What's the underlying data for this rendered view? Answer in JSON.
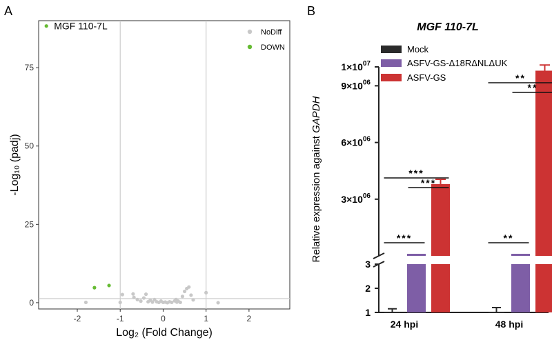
{
  "panel_labels": {
    "a": "A",
    "b": "B"
  },
  "colors": {
    "nodiff": "#c8c8c8",
    "down": "#66bb33",
    "mock": "#2b2b2b",
    "ko": "#7e5ea6",
    "wt": "#cc3333",
    "grid": "#cccccc",
    "axis": "#222222"
  },
  "chart_data": [
    {
      "id": "A",
      "type": "scatter",
      "title": "",
      "xlabel": "Log₂ (Fold Change)",
      "ylabel": "-Log₁₀ (padj)",
      "xlim": [
        -2.9,
        2.95
      ],
      "ylim": [
        -2,
        90
      ],
      "xticks": [
        -2,
        -1,
        0,
        1,
        2
      ],
      "yticks": [
        0,
        25,
        50,
        75
      ],
      "xtick_labels": [
        "-2",
        "-1",
        "0",
        "1",
        "2"
      ],
      "ytick_labels": [
        "0",
        "25",
        "50",
        "75"
      ],
      "vlines": [
        -1,
        1
      ],
      "hline": 1.3,
      "legend": {
        "position": "top-right",
        "entries": [
          "NoDiff",
          "DOWN"
        ]
      },
      "annotation": {
        "text": "MGF 110-7L",
        "x": -2.72,
        "y": 88.3
      },
      "series": [
        {
          "name": "DOWN",
          "points": [
            [
              -2.72,
              88.3
            ],
            [
              -1.6,
              4.8
            ],
            [
              -1.26,
              5.5
            ]
          ]
        },
        {
          "name": "NoDiff",
          "points": [
            [
              -1.8,
              0.1
            ],
            [
              -1.0,
              0.1
            ],
            [
              -0.95,
              2.6
            ],
            [
              -0.7,
              2.8
            ],
            [
              -0.68,
              1.7
            ],
            [
              -0.6,
              1.0
            ],
            [
              -0.52,
              0.5
            ],
            [
              -0.45,
              1.5
            ],
            [
              -0.4,
              2.7
            ],
            [
              -0.35,
              0.3
            ],
            [
              -0.3,
              0.8
            ],
            [
              -0.25,
              0.2
            ],
            [
              -0.2,
              1.0
            ],
            [
              -0.15,
              0.3
            ],
            [
              -0.1,
              0.1
            ],
            [
              -0.05,
              0.5
            ],
            [
              0.0,
              0.1
            ],
            [
              0.05,
              0.2
            ],
            [
              0.1,
              0.0
            ],
            [
              0.15,
              0.3
            ],
            [
              0.2,
              0.1
            ],
            [
              0.27,
              0.6
            ],
            [
              0.3,
              1.0
            ],
            [
              0.32,
              0.2
            ],
            [
              0.35,
              0.5
            ],
            [
              0.4,
              0.1
            ],
            [
              0.45,
              2.0
            ],
            [
              0.5,
              3.6
            ],
            [
              0.55,
              4.5
            ],
            [
              0.6,
              5.0
            ],
            [
              0.65,
              2.4
            ],
            [
              0.7,
              0.9
            ],
            [
              1.0,
              3.2
            ],
            [
              1.28,
              0.0
            ]
          ]
        }
      ]
    },
    {
      "id": "B",
      "type": "bar",
      "title": "MGF 110-7L",
      "xlabel": "",
      "ylabel_prefix": "Relative expression against ",
      "ylabel_gene": "GAPDH",
      "categories": [
        "24 hpi",
        "48 hpi"
      ],
      "series": [
        {
          "name": "Mock",
          "values": [
            1.0,
            1.0
          ],
          "errors": [
            0.15,
            0.2
          ]
        },
        {
          "name": "ASFV-GS-Δ18RΔNLΔUK",
          "values": [
            260000,
            270000
          ],
          "errors": [
            20000,
            20000
          ]
        },
        {
          "name": "ASFV-GS",
          "values": [
            3800000,
            9800000
          ],
          "errors": [
            250000,
            300000
          ]
        }
      ],
      "lower_axis": {
        "ylim": [
          1,
          3
        ],
        "ticks": [
          1,
          2,
          3
        ],
        "tick_labels": [
          "1",
          "2",
          "3"
        ]
      },
      "upper_axis": {
        "ylim": [
          0,
          10000000
        ],
        "ticks": [
          3000000,
          6000000,
          9000000,
          10000000
        ],
        "tick_labels": [
          {
            "mantissa": "3×10",
            "exponent": "06"
          },
          {
            "mantissa": "6×10",
            "exponent": "06"
          },
          {
            "mantissa": "9×10",
            "exponent": "06"
          },
          {
            "mantissa": "1×10",
            "exponent": "07"
          }
        ]
      },
      "legend": {
        "position": "top-left"
      },
      "significance": [
        {
          "group": "24 hpi",
          "from": "Mock",
          "to": "ASFV-GS-Δ18RΔNLΔUK",
          "label": "***"
        },
        {
          "group": "24 hpi",
          "from": "Mock",
          "to": "ASFV-GS",
          "label": "***"
        },
        {
          "group": "24 hpi",
          "from": "ASFV-GS-Δ18RΔNLΔUK",
          "to": "ASFV-GS",
          "label": "***"
        },
        {
          "group": "48 hpi",
          "from": "Mock",
          "to": "ASFV-GS-Δ18RΔNLΔUK",
          "label": "**"
        },
        {
          "group": "48 hpi",
          "from": "Mock",
          "to": "ASFV-GS",
          "label": "**"
        },
        {
          "group": "48 hpi",
          "from": "ASFV-GS-Δ18RΔNLΔUK",
          "to": "ASFV-GS",
          "label": "**"
        }
      ]
    }
  ]
}
